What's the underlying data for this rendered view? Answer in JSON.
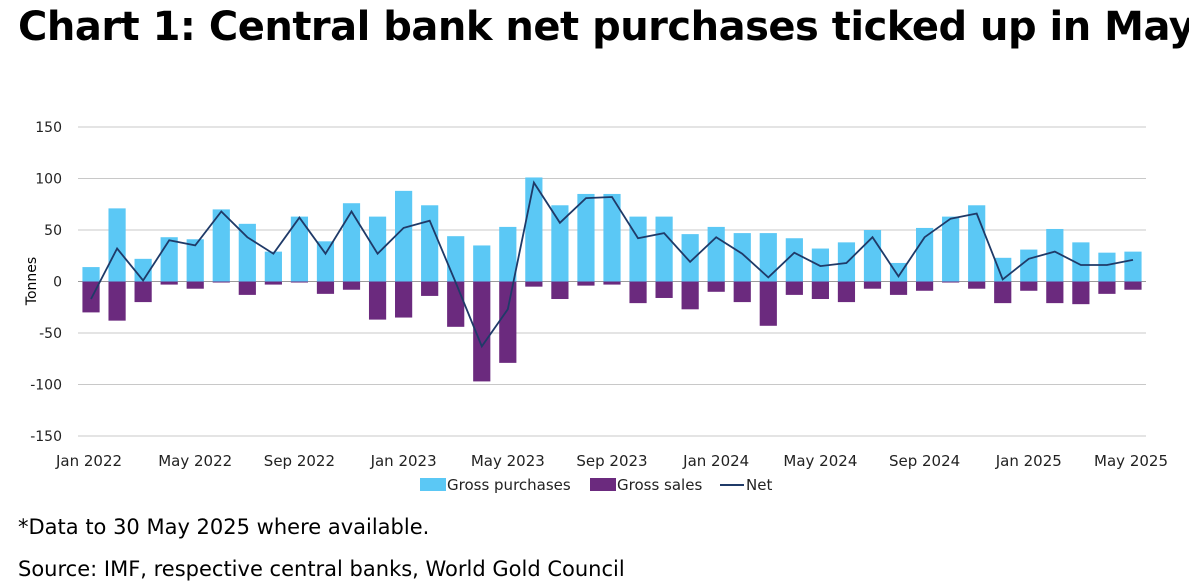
{
  "title": "Chart 1: Central bank net purchases ticked up in May",
  "footnote": "*Data to 30 May 2025 where available.",
  "source": "Source: IMF, respective central banks, World Gold Council",
  "colors": {
    "purchases": "#5bc8f5",
    "sales": "#6b2a7e",
    "net": "#1f3a68",
    "grid": "#c8c8c8"
  },
  "chart_data": {
    "type": "bar",
    "ylabel": "Tonnes",
    "ylim": [
      -150,
      150
    ],
    "yticks": [
      150,
      100,
      50,
      0,
      -50,
      -100,
      -150
    ],
    "xtick_labels": [
      "Jan 2022",
      "May 2022",
      "Sep 2022",
      "Jan 2023",
      "May 2023",
      "Sep 2023",
      "Jan 2024",
      "May 2024",
      "Sep 2024",
      "Jan 2025",
      "May 2025"
    ],
    "xtick_every": 4,
    "categories": [
      "Jan 2022",
      "Feb 2022",
      "Mar 2022",
      "Apr 2022",
      "May 2022",
      "Jun 2022",
      "Jul 2022",
      "Aug 2022",
      "Sep 2022",
      "Oct 2022",
      "Nov 2022",
      "Dec 2022",
      "Jan 2023",
      "Feb 2023",
      "Mar 2023",
      "Apr 2023",
      "May 2023",
      "Jun 2023",
      "Jul 2023",
      "Aug 2023",
      "Sep 2023",
      "Oct 2023",
      "Nov 2023",
      "Dec 2023",
      "Jan 2024",
      "Feb 2024",
      "Mar 2024",
      "Apr 2024",
      "May 2024",
      "Jun 2024",
      "Jul 2024",
      "Aug 2024",
      "Sep 2024",
      "Oct 2024",
      "Nov 2024",
      "Dec 2024",
      "Jan 2025",
      "Feb 2025",
      "Mar 2025",
      "Apr 2025",
      "May 2025"
    ],
    "series": [
      {
        "name": "Gross purchases",
        "kind": "bar",
        "values": [
          14,
          71,
          22,
          43,
          41,
          70,
          56,
          29,
          63,
          39,
          76,
          63,
          88,
          74,
          44,
          35,
          53,
          101,
          74,
          85,
          85,
          63,
          63,
          46,
          53,
          47,
          47,
          42,
          32,
          38,
          50,
          18,
          52,
          63,
          74,
          23,
          31,
          51,
          38,
          28,
          29
        ]
      },
      {
        "name": "Gross sales",
        "kind": "bar",
        "values": [
          -30,
          -38,
          -20,
          -3,
          -7,
          -1,
          -13,
          -3,
          -1,
          -12,
          -8,
          -37,
          -35,
          -14,
          -44,
          -97,
          -79,
          -5,
          -17,
          -4,
          -3,
          -21,
          -16,
          -27,
          -10,
          -20,
          -43,
          -13,
          -17,
          -20,
          -7,
          -13,
          -9,
          -1,
          -7,
          -21,
          -9,
          -21,
          -22,
          -12,
          -8
        ]
      },
      {
        "name": "Net",
        "kind": "line",
        "values": [
          -17,
          32,
          1,
          40,
          35,
          68,
          43,
          27,
          62,
          27,
          68,
          27,
          52,
          59,
          -1,
          -63,
          -27,
          96,
          57,
          81,
          82,
          42,
          47,
          19,
          43,
          27,
          4,
          28,
          15,
          18,
          43,
          5,
          43,
          61,
          66,
          2,
          22,
          29,
          16,
          16,
          21
        ]
      }
    ],
    "legend": [
      "Gross purchases",
      "Gross sales",
      "Net"
    ],
    "legend_position": "bottom-center"
  }
}
